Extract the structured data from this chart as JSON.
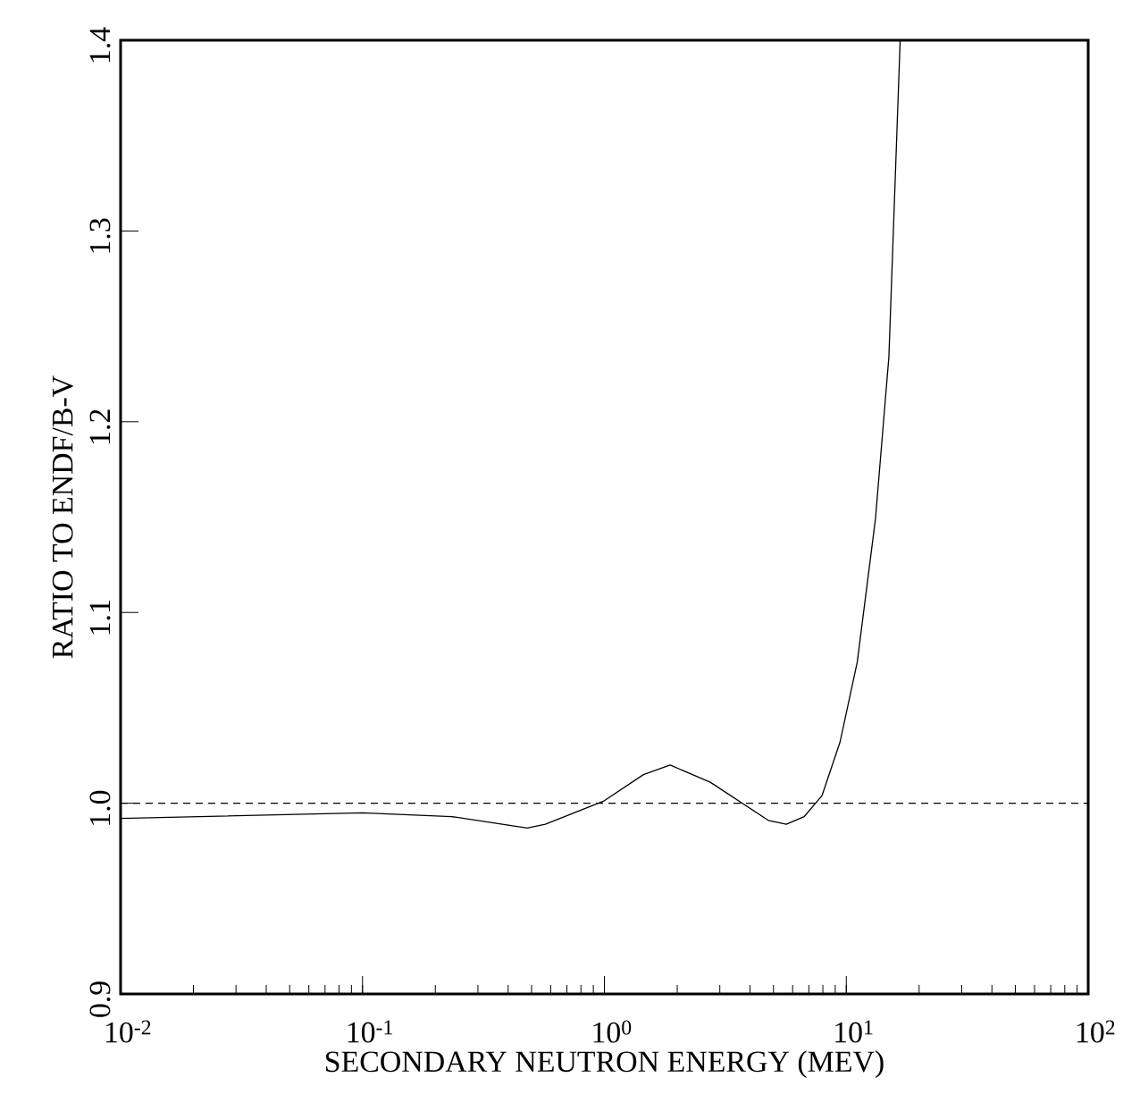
{
  "chart_data": {
    "type": "line",
    "xlabel": "SECONDARY NEUTRON ENERGY (MEV)",
    "ylabel": "RATIO TO ENDF/B-V",
    "x": [
      0.01,
      0.1,
      0.233,
      0.48,
      0.57,
      0.99,
      1.45,
      1.87,
      2.74,
      4.76,
      5.65,
      6.7,
      7.94,
      9.42,
      11.1,
      13.2,
      15.0,
      16.7
    ],
    "series": [
      {
        "color": "#000000",
        "line_style": "solid",
        "values": [
          0.992,
          0.995,
          0.993,
          0.987,
          0.989,
          1.001,
          1.015,
          1.02,
          1.011,
          0.991,
          0.989,
          0.993,
          1.004,
          1.032,
          1.074,
          1.149,
          1.234,
          1.4
        ]
      }
    ],
    "log": "x",
    "xlim": [
      0.01,
      100
    ],
    "ylim": [
      0.9,
      1.4
    ],
    "xticks": [
      {
        "value": 0.01,
        "label": "10$^{-2}$"
      },
      {
        "value": 0.1,
        "label": "10$^{-1}$"
      },
      {
        "value": 1,
        "label": "10$^{0}$"
      },
      {
        "value": 10,
        "label": "10$^{1}$"
      },
      {
        "value": 100,
        "label": "10$^{2}$"
      }
    ],
    "yticks": [
      {
        "value": 0.9,
        "label": "0.9"
      },
      {
        "value": 1.0,
        "label": "1.0"
      },
      {
        "value": 1.1,
        "label": "1.1"
      },
      {
        "value": 1.2,
        "label": "1.2"
      },
      {
        "value": 1.3,
        "label": "1.3"
      },
      {
        "value": 1.4,
        "label": "1.4"
      }
    ],
    "ref_lines": [
      {
        "axis": "y",
        "value": 1.0,
        "color": "#000000",
        "line_style": "dashed"
      }
    ]
  }
}
